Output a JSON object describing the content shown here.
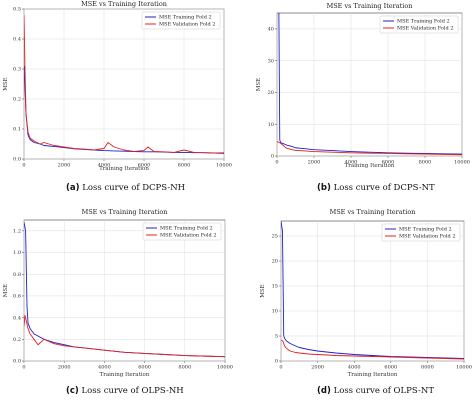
{
  "captions": [
    {
      "letter": "(a)",
      "text": "Loss curve of DCPS-NH"
    },
    {
      "letter": "(b)",
      "text": "Loss curve of DCPS-NT"
    },
    {
      "letter": "(c)",
      "text": "Loss curve of OLPS-NH"
    },
    {
      "letter": "(d)",
      "text": "Loss curve of OLPS-NT"
    }
  ],
  "chart_data": [
    {
      "type": "line",
      "title": "MSE vs Training Iteration",
      "xlabel": "Training Iteration",
      "ylabel": "MSE",
      "xlim": [
        0,
        10000
      ],
      "ylim": [
        0,
        0.5
      ],
      "xticks": [
        0,
        2000,
        4000,
        6000,
        8000,
        10000
      ],
      "yticks": [
        0.0,
        0.1,
        0.2,
        0.3,
        0.4,
        0.5
      ],
      "grid": true,
      "legend": "top-right",
      "series": [
        {
          "name": "MSE Training Fold 2",
          "color": "#1f1fd0",
          "x": [
            0,
            100,
            200,
            300,
            500,
            800,
            1000,
            1500,
            2000,
            2500,
            3000,
            3500,
            4000,
            4500,
            5000,
            5500,
            6000,
            6500,
            7000,
            7500,
            8000,
            8500,
            9000,
            9500,
            10000
          ],
          "y": [
            0.31,
            0.15,
            0.08,
            0.065,
            0.055,
            0.05,
            0.045,
            0.042,
            0.038,
            0.034,
            0.032,
            0.03,
            0.028,
            0.027,
            0.026,
            0.025,
            0.024,
            0.024,
            0.023,
            0.022,
            0.022,
            0.021,
            0.021,
            0.02,
            0.02
          ]
        },
        {
          "name": "MSE Validation Fold 2",
          "color": "#e02020",
          "x": [
            0,
            50,
            100,
            200,
            300,
            500,
            800,
            1000,
            1500,
            2000,
            2500,
            3000,
            3500,
            4000,
            4200,
            4500,
            5000,
            5500,
            6000,
            6200,
            6500,
            7000,
            7500,
            8000,
            8500,
            9000,
            9500,
            10000
          ],
          "y": [
            0.48,
            0.3,
            0.15,
            0.09,
            0.07,
            0.06,
            0.05,
            0.055,
            0.045,
            0.04,
            0.035,
            0.033,
            0.03,
            0.035,
            0.055,
            0.04,
            0.03,
            0.025,
            0.028,
            0.04,
            0.025,
            0.024,
            0.022,
            0.03,
            0.022,
            0.021,
            0.02,
            0.018
          ]
        }
      ]
    },
    {
      "type": "line",
      "title": "MSE vs Training Iteration",
      "xlabel": "Training Iteration",
      "ylabel": "MSE",
      "xlim": [
        0,
        10000
      ],
      "ylim": [
        0,
        45
      ],
      "xticks": [
        0,
        2000,
        4000,
        6000,
        8000,
        10000
      ],
      "yticks": [
        0,
        10,
        20,
        30,
        40
      ],
      "grid": true,
      "legend": "top-right",
      "series": [
        {
          "name": "MSE Training Fold 2",
          "color": "#1f1fd0",
          "x": [
            0,
            100,
            150,
            200,
            300,
            500,
            800,
            1000,
            1500,
            2000,
            3000,
            4000,
            5000,
            6000,
            7000,
            8000,
            9000,
            10000
          ],
          "y": [
            47,
            46,
            5,
            4.2,
            4,
            3.5,
            3,
            2.6,
            2.3,
            2.0,
            1.7,
            1.4,
            1.2,
            1.0,
            0.9,
            0.8,
            0.7,
            0.6
          ]
        },
        {
          "name": "MSE Validation Fold 2",
          "color": "#e02020",
          "x": [
            0,
            100,
            200,
            300,
            500,
            800,
            1000,
            1500,
            2000,
            3000,
            4000,
            5000,
            6000,
            7000,
            8000,
            9000,
            10000
          ],
          "y": [
            4.5,
            4.3,
            4.0,
            3.5,
            2.5,
            2.0,
            1.8,
            1.6,
            1.4,
            1.2,
            1.0,
            0.9,
            0.8,
            0.7,
            0.6,
            0.5,
            0.4
          ]
        }
      ]
    },
    {
      "type": "line",
      "title": "MSE vs Training Iteration",
      "xlabel": "Training Iteration",
      "ylabel": "MSE",
      "xlim": [
        0,
        10000
      ],
      "ylim": [
        0,
        1.3
      ],
      "xticks": [
        0,
        2000,
        4000,
        6000,
        8000,
        10000
      ],
      "yticks": [
        0.0,
        0.2,
        0.4,
        0.6,
        0.8,
        1.0,
        1.2
      ],
      "grid": true,
      "legend": "top-right",
      "series": [
        {
          "name": "MSE Training Fold 2",
          "color": "#1f1fd0",
          "x": [
            0,
            80,
            150,
            200,
            300,
            500,
            800,
            1000,
            1500,
            2000,
            2500,
            3000,
            4000,
            5000,
            6000,
            7000,
            8000,
            9000,
            10000
          ],
          "y": [
            1.28,
            1.2,
            0.5,
            0.35,
            0.3,
            0.25,
            0.22,
            0.2,
            0.17,
            0.15,
            0.13,
            0.12,
            0.1,
            0.08,
            0.07,
            0.06,
            0.05,
            0.045,
            0.04
          ]
        },
        {
          "name": "MSE Validation Fold 2",
          "color": "#e02020",
          "x": [
            0,
            50,
            100,
            200,
            300,
            500,
            700,
            1000,
            1500,
            2000,
            2500,
            3000,
            3500,
            4000,
            5000,
            6000,
            7000,
            8000,
            9000,
            10000
          ],
          "y": [
            0.32,
            0.42,
            0.38,
            0.3,
            0.25,
            0.2,
            0.15,
            0.2,
            0.16,
            0.14,
            0.13,
            0.12,
            0.11,
            0.1,
            0.08,
            0.07,
            0.06,
            0.05,
            0.045,
            0.04
          ]
        }
      ]
    },
    {
      "type": "line",
      "title": "MSE vs Training Iteration",
      "xlabel": "Training Iteration",
      "ylabel": "MSE",
      "xlim": [
        0,
        10000
      ],
      "ylim": [
        0,
        28
      ],
      "xticks": [
        0,
        2000,
        4000,
        6000,
        8000,
        10000
      ],
      "yticks": [
        0,
        5,
        10,
        15,
        20,
        25
      ],
      "grid": true,
      "legend": "top-right",
      "series": [
        {
          "name": "MSE Training Fold 2",
          "color": "#1f1fd0",
          "x": [
            0,
            80,
            150,
            200,
            300,
            500,
            800,
            1000,
            1500,
            2000,
            3000,
            4000,
            5000,
            6000,
            7000,
            8000,
            9000,
            10000
          ],
          "y": [
            28,
            26,
            5,
            4.5,
            4.0,
            3.5,
            3.0,
            2.7,
            2.3,
            2.0,
            1.6,
            1.3,
            1.1,
            0.9,
            0.8,
            0.7,
            0.6,
            0.5
          ]
        },
        {
          "name": "MSE Validation Fold 2",
          "color": "#e02020",
          "x": [
            0,
            100,
            200,
            300,
            500,
            800,
            1000,
            1500,
            2000,
            3000,
            4000,
            5000,
            6000,
            7000,
            8000,
            9000,
            10000
          ],
          "y": [
            4.2,
            4.0,
            3.0,
            2.5,
            2.0,
            1.7,
            1.6,
            1.4,
            1.3,
            1.1,
            1.0,
            0.9,
            0.8,
            0.7,
            0.6,
            0.5,
            0.4
          ]
        }
      ]
    }
  ]
}
